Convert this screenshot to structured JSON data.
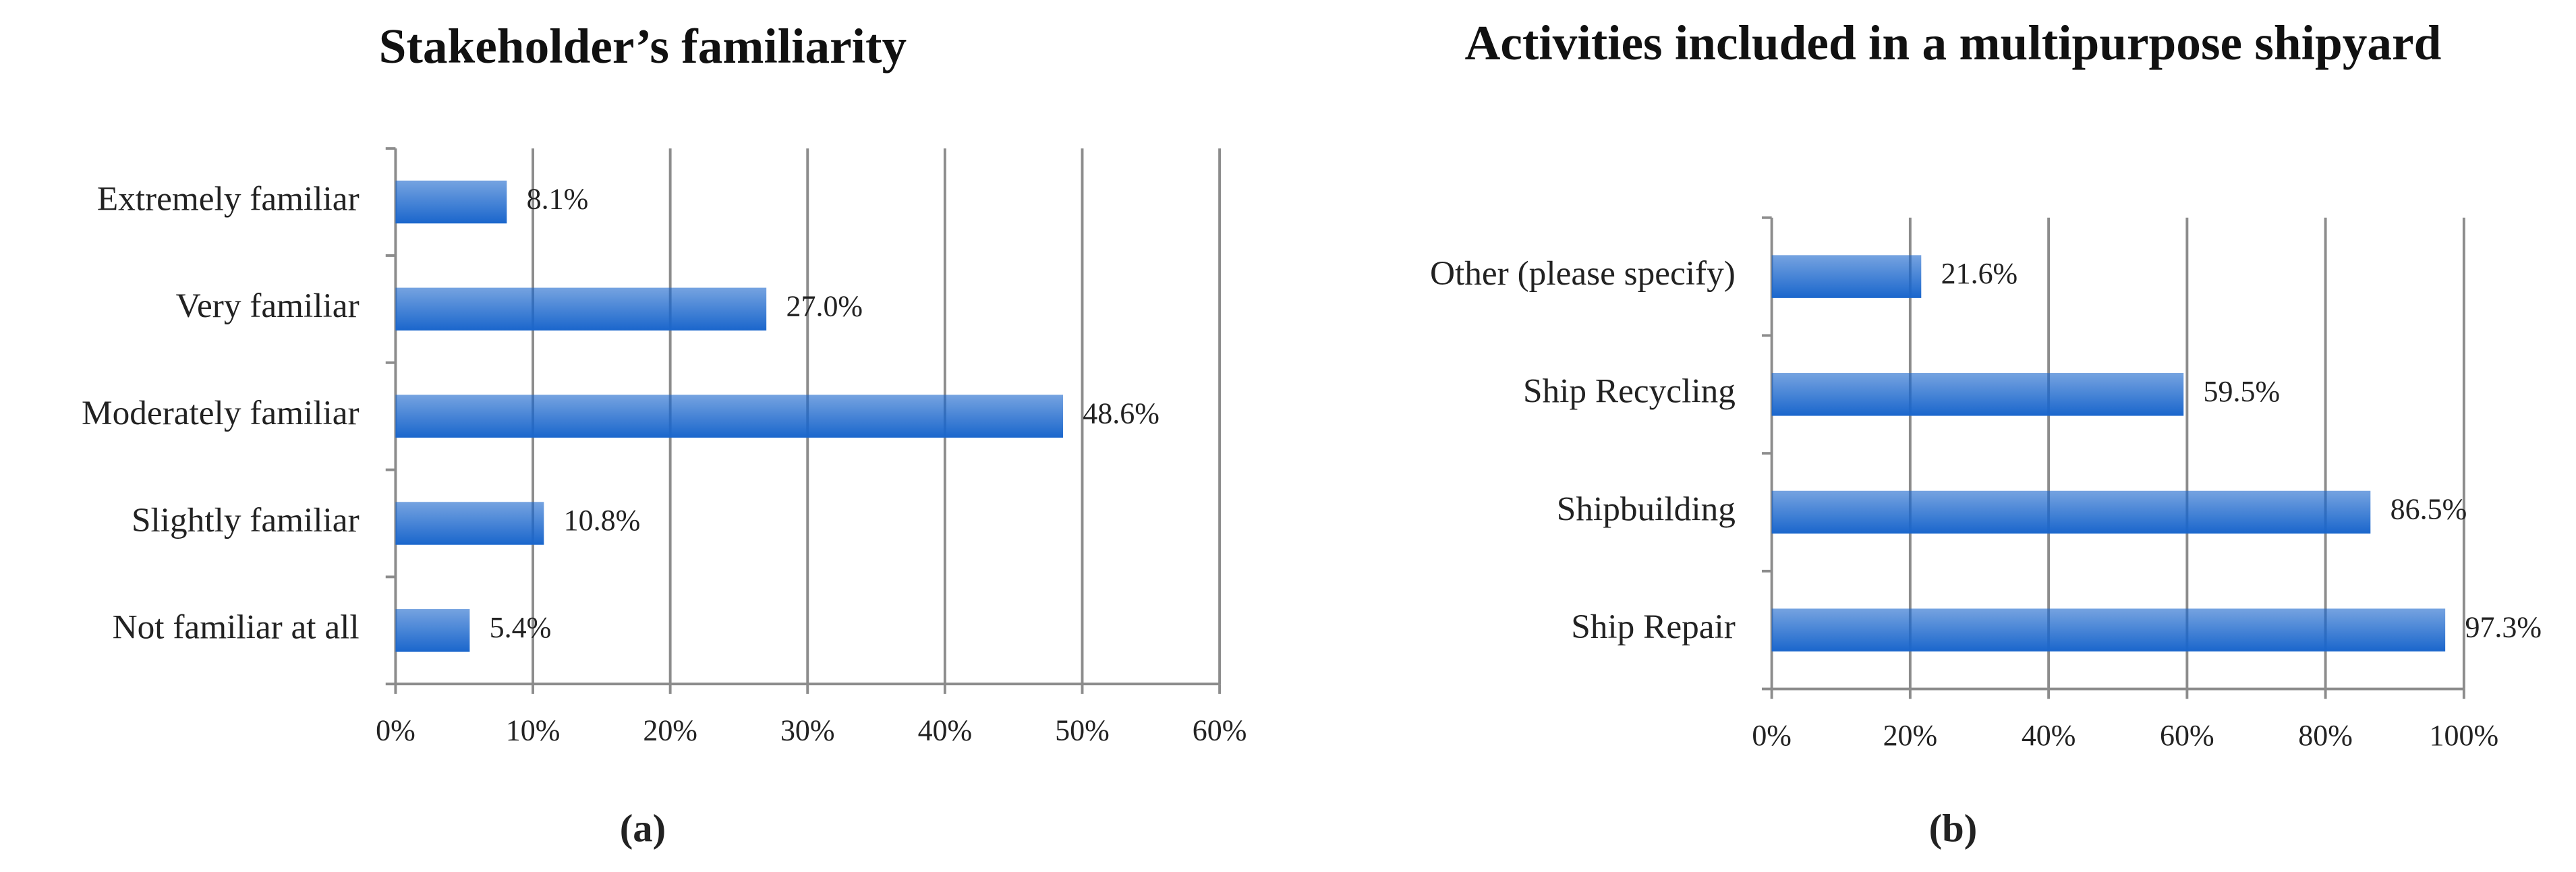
{
  "chart_data": [
    {
      "type": "bar",
      "orientation": "horizontal",
      "title": "Stakeholder’s familiarity",
      "caption": "(a)",
      "categories": [
        "Extremely familiar",
        "Very familiar",
        "Moderately familiar",
        "Slightly familiar",
        "Not familiar at all"
      ],
      "values": [
        8.1,
        27.0,
        48.6,
        10.8,
        5.4
      ],
      "value_labels": [
        "8.1%",
        "27.0%",
        "48.6%",
        "10.8%",
        "5.4%"
      ],
      "color": "#1a66cc",
      "grid": true,
      "xlim": [
        0,
        60
      ],
      "xticks": [
        {
          "value": 0,
          "label": "0%"
        },
        {
          "value": 10,
          "label": "10%"
        },
        {
          "value": 20,
          "label": "20%"
        },
        {
          "value": 30,
          "label": "30%"
        },
        {
          "value": 40,
          "label": "40%"
        },
        {
          "value": 50,
          "label": "50%"
        },
        {
          "value": 60,
          "label": "60%"
        }
      ]
    },
    {
      "type": "bar",
      "orientation": "horizontal",
      "title": "Activities included in a multipurpose shipyard",
      "caption": "(b)",
      "categories": [
        "Other (please specify)",
        "Ship Recycling",
        "Shipbuilding",
        "Ship Repair"
      ],
      "values": [
        21.6,
        59.5,
        86.5,
        97.3
      ],
      "value_labels": [
        "21.6%",
        "59.5%",
        "86.5%",
        "97.3%"
      ],
      "color": "#1a66cc",
      "grid": true,
      "xlim": [
        0,
        100
      ],
      "xticks": [
        {
          "value": 0,
          "label": "0%"
        },
        {
          "value": 20,
          "label": "20%"
        },
        {
          "value": 40,
          "label": "40%"
        },
        {
          "value": 60,
          "label": "60%"
        },
        {
          "value": 80,
          "label": "80%"
        },
        {
          "value": 100,
          "label": "100%"
        }
      ]
    }
  ]
}
